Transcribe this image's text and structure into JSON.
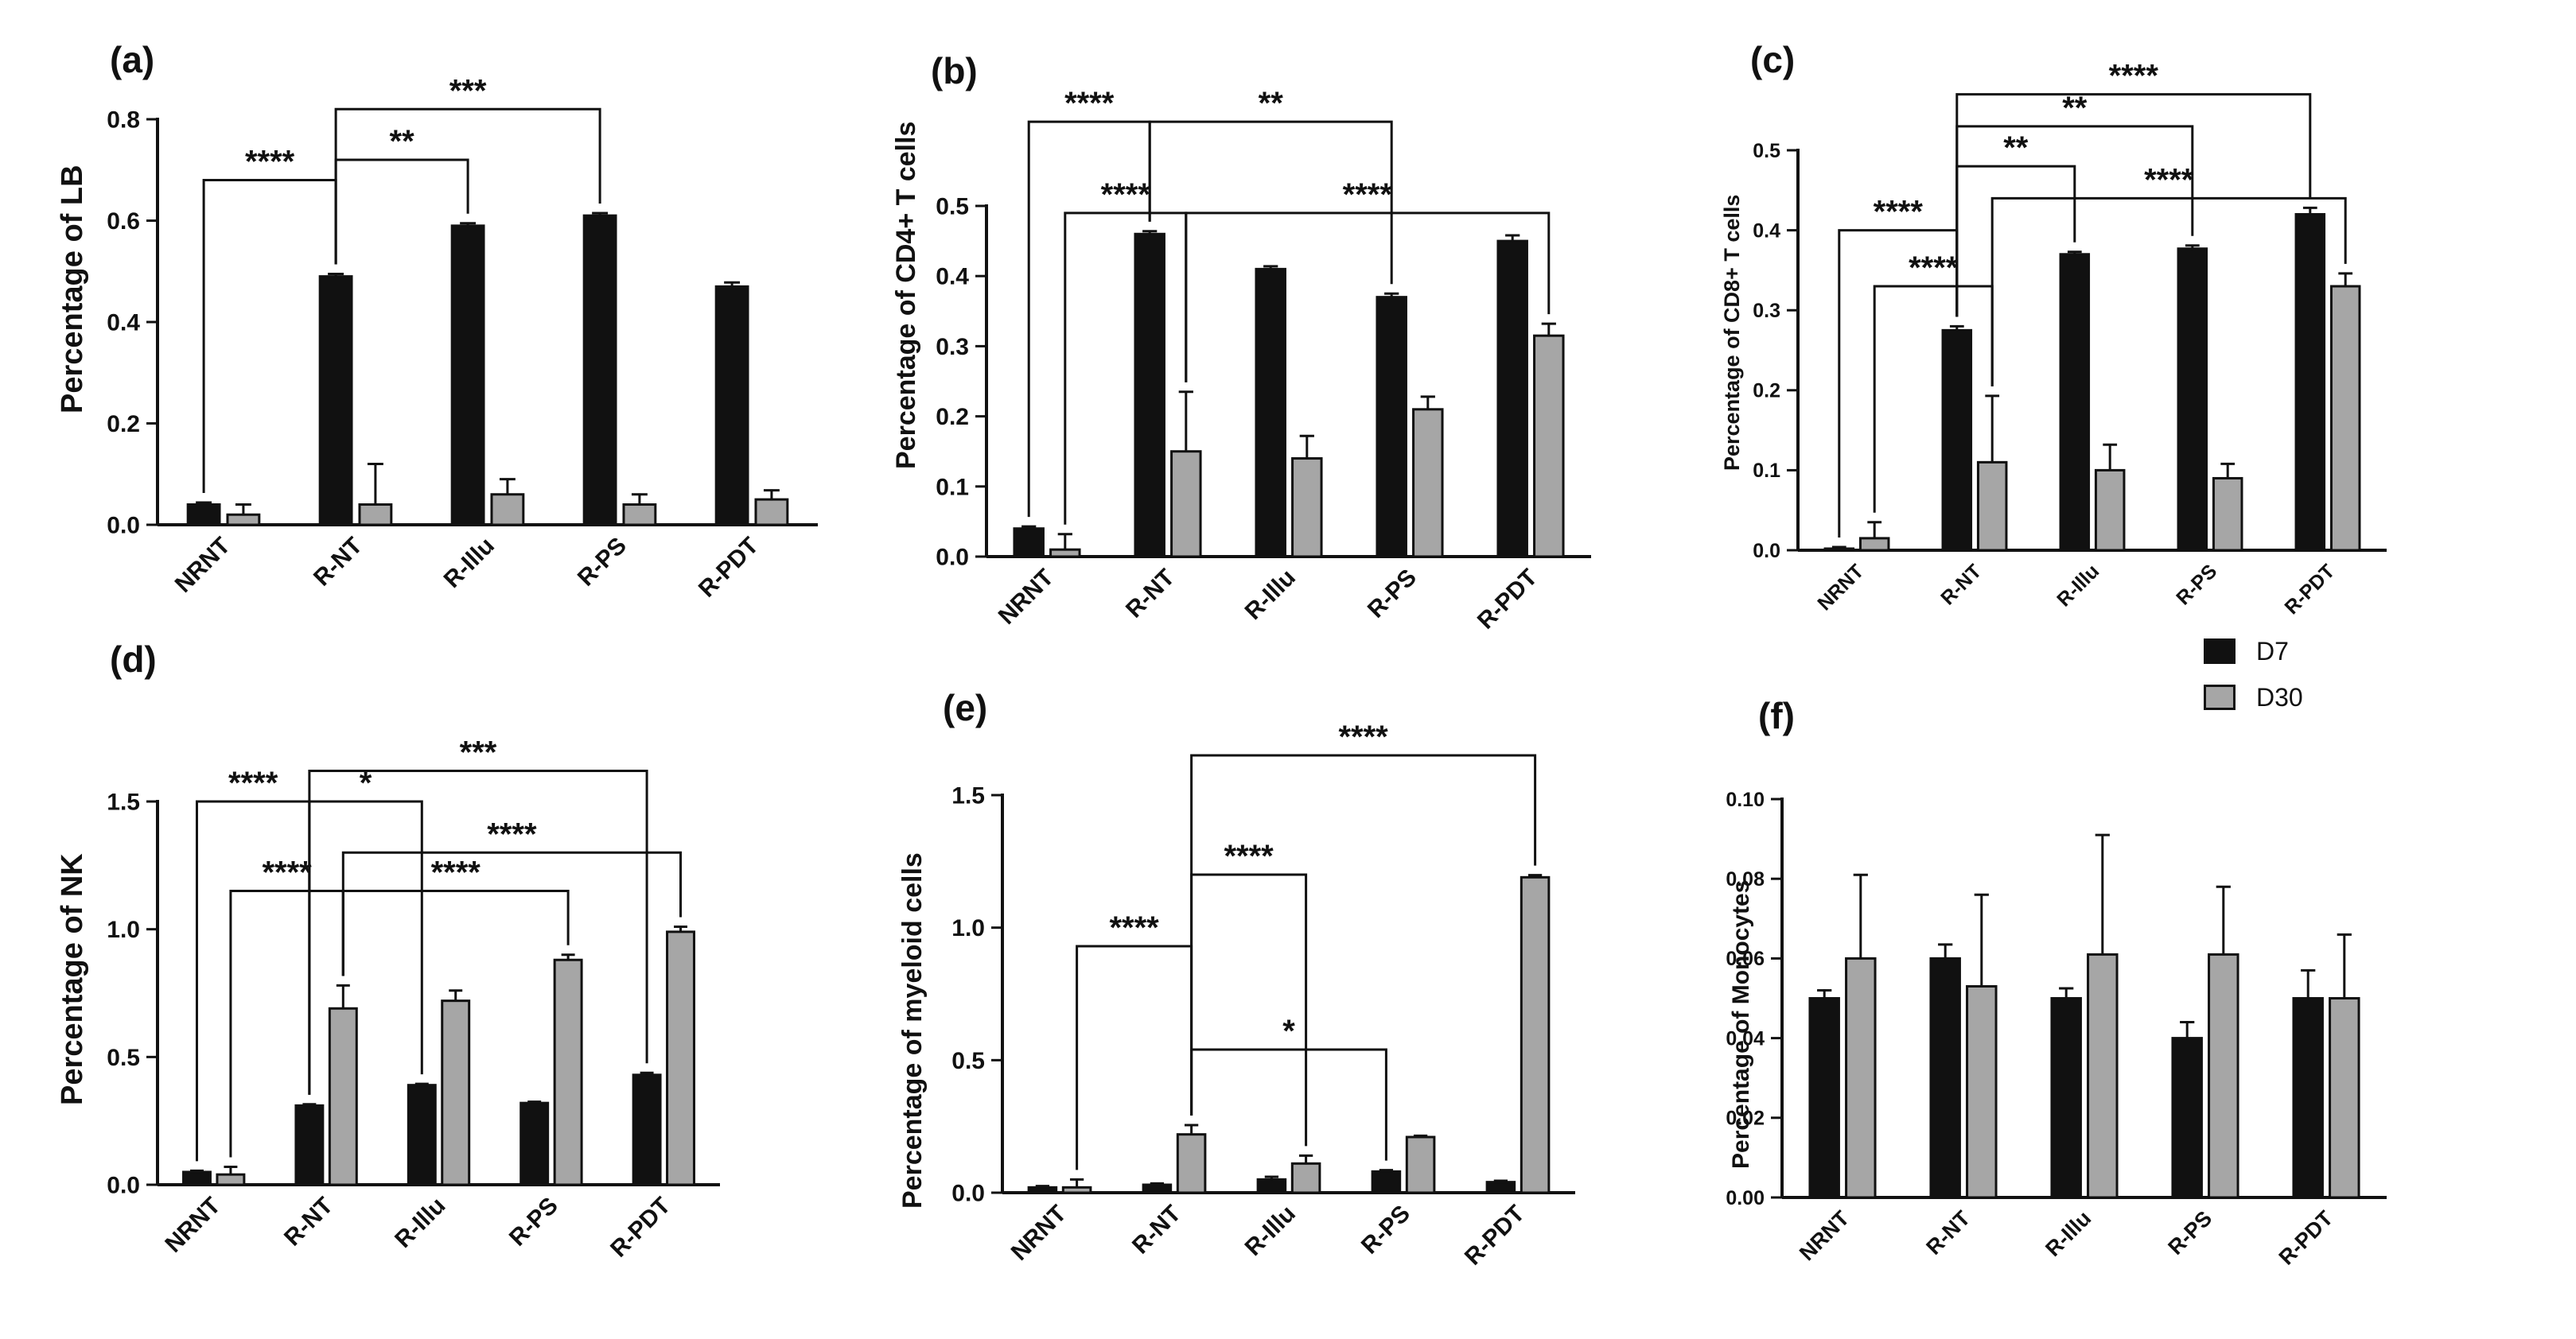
{
  "legend": [
    {
      "name": "D7",
      "color": "#111111"
    },
    {
      "name": "D30",
      "color": "#a6a6a6"
    }
  ],
  "chart_data": [
    {
      "type": "bar",
      "panel": "(a)",
      "ylabel": "Percentage of LB",
      "ylim": [
        0,
        0.8
      ],
      "yticks": [
        0.0,
        0.2,
        0.4,
        0.6,
        0.8
      ],
      "ytick_labels": [
        "0.0",
        "0.2",
        "0.4",
        "0.6",
        "0.8"
      ],
      "categories": [
        "NRNT",
        "R-NT",
        "R-Illu",
        "R-PS",
        "R-PDT"
      ],
      "series": [
        {
          "name": "D7",
          "values": [
            0.04,
            0.49,
            0.59,
            0.61,
            0.47
          ],
          "errors": [
            0.004,
            0.005,
            0.005,
            0.005,
            0.008
          ]
        },
        {
          "name": "D30",
          "values": [
            0.02,
            0.04,
            0.06,
            0.04,
            0.05
          ],
          "errors": [
            0.02,
            0.08,
            0.03,
            0.02,
            0.018
          ]
        }
      ],
      "annotations": [
        {
          "label": "****",
          "from": [
            0,
            "D7"
          ],
          "to": [
            1,
            "D7"
          ],
          "y": 0.68
        },
        {
          "label": "**",
          "from": [
            1,
            "D7"
          ],
          "to": [
            2,
            "D7"
          ],
          "y": 0.72
        },
        {
          "label": "***",
          "from": [
            1,
            "D7"
          ],
          "to": [
            3,
            "D7"
          ],
          "y": 0.82
        }
      ]
    },
    {
      "type": "bar",
      "panel": "(b)",
      "ylabel": "Percentage of CD4+ T cells",
      "ylim": [
        0,
        0.5
      ],
      "yticks": [
        0.0,
        0.1,
        0.2,
        0.3,
        0.4,
        0.5
      ],
      "ytick_labels": [
        "0.0",
        "0.1",
        "0.2",
        "0.3",
        "0.4",
        "0.5"
      ],
      "categories": [
        "NRNT",
        "R-NT",
        "R-Illu",
        "R-PS",
        "R-PDT"
      ],
      "series": [
        {
          "name": "D7",
          "values": [
            0.04,
            0.46,
            0.41,
            0.37,
            0.45
          ],
          "errors": [
            0.003,
            0.004,
            0.004,
            0.005,
            0.008
          ]
        },
        {
          "name": "D30",
          "values": [
            0.01,
            0.15,
            0.14,
            0.21,
            0.315
          ],
          "errors": [
            0.022,
            0.085,
            0.032,
            0.018,
            0.017
          ]
        }
      ],
      "annotations": [
        {
          "label": "****",
          "from": [
            0,
            "D7"
          ],
          "to": [
            1,
            "D7"
          ],
          "y": 0.62
        },
        {
          "label": "**",
          "from": [
            1,
            "D7"
          ],
          "to": [
            3,
            "D7"
          ],
          "y": 0.62
        },
        {
          "label": "****",
          "from": [
            0,
            "D30"
          ],
          "to": [
            1,
            "D30"
          ],
          "y": 0.49
        },
        {
          "label": "****",
          "from": [
            1,
            "D30"
          ],
          "to": [
            4,
            "D30"
          ],
          "y": 0.49
        }
      ]
    },
    {
      "type": "bar",
      "panel": "(c)",
      "ylabel": "Percentage of CD8+ T cells",
      "ylim": [
        0,
        0.5
      ],
      "yticks": [
        0.0,
        0.1,
        0.2,
        0.3,
        0.4,
        0.5
      ],
      "ytick_labels": [
        "0.0",
        "0.1",
        "0.2",
        "0.3",
        "0.4",
        "0.5"
      ],
      "categories": [
        "NRNT",
        "R-NT",
        "R-Illu",
        "R-PS",
        "R-PDT"
      ],
      "series": [
        {
          "name": "D7",
          "values": [
            0.002,
            0.275,
            0.37,
            0.377,
            0.42
          ],
          "errors": [
            0.002,
            0.005,
            0.003,
            0.004,
            0.008
          ]
        },
        {
          "name": "D30",
          "values": [
            0.015,
            0.11,
            0.1,
            0.09,
            0.33
          ],
          "errors": [
            0.02,
            0.083,
            0.032,
            0.018,
            0.016
          ]
        }
      ],
      "annotations": [
        {
          "label": "****",
          "from": [
            0,
            "D7"
          ],
          "to": [
            1,
            "D7"
          ],
          "y": 0.4
        },
        {
          "label": "**",
          "from": [
            1,
            "D7"
          ],
          "to": [
            2,
            "D7"
          ],
          "y": 0.48
        },
        {
          "label": "**",
          "from": [
            1,
            "D7"
          ],
          "to": [
            3,
            "D7"
          ],
          "y": 0.53
        },
        {
          "label": "****",
          "from": [
            1,
            "D7"
          ],
          "to": [
            4,
            "D7"
          ],
          "y": 0.57
        },
        {
          "label": "****",
          "from": [
            0,
            "D30"
          ],
          "to": [
            1,
            "D30"
          ],
          "y": 0.33
        },
        {
          "label": "****",
          "from": [
            1,
            "D30"
          ],
          "to": [
            4,
            "D30"
          ],
          "y": 0.44
        }
      ]
    },
    {
      "type": "bar",
      "panel": "(d)",
      "ylabel": "Percentage of NK",
      "ylim": [
        0,
        1.5
      ],
      "yticks": [
        0.0,
        0.5,
        1.0,
        1.5
      ],
      "ytick_labels": [
        "0.0",
        "0.5",
        "1.0",
        "1.5"
      ],
      "categories": [
        "NRNT",
        "R-NT",
        "R-Illu",
        "R-PS",
        "R-PDT"
      ],
      "series": [
        {
          "name": "D7",
          "values": [
            0.05,
            0.31,
            0.39,
            0.32,
            0.43
          ],
          "errors": [
            0.005,
            0.005,
            0.005,
            0.005,
            0.008
          ]
        },
        {
          "name": "D30",
          "values": [
            0.04,
            0.69,
            0.72,
            0.88,
            0.99
          ],
          "errors": [
            0.03,
            0.09,
            0.04,
            0.02,
            0.02
          ]
        }
      ],
      "annotations": [
        {
          "label": "****",
          "from": [
            0,
            "D7"
          ],
          "to": [
            1,
            "D7"
          ],
          "y": 1.5
        },
        {
          "label": "*",
          "from": [
            1,
            "D7"
          ],
          "to": [
            2,
            "D7"
          ],
          "y": 1.5
        },
        {
          "label": "***",
          "from": [
            1,
            "D7"
          ],
          "to": [
            4,
            "D7"
          ],
          "y": 1.62
        },
        {
          "label": "****",
          "from": [
            0,
            "D30"
          ],
          "to": [
            1,
            "D30"
          ],
          "y": 1.15
        },
        {
          "label": "****",
          "from": [
            1,
            "D30"
          ],
          "to": [
            3,
            "D30"
          ],
          "y": 1.15
        },
        {
          "label": "****",
          "from": [
            1,
            "D30"
          ],
          "to": [
            4,
            "D30"
          ],
          "y": 1.3
        }
      ]
    },
    {
      "type": "bar",
      "panel": "(e)",
      "ylabel": "Percentage of myeloid cells",
      "ylim": [
        0,
        1.5
      ],
      "yticks": [
        0.0,
        0.5,
        1.0,
        1.5
      ],
      "ytick_labels": [
        "0.0",
        "0.5",
        "1.0",
        "1.5"
      ],
      "categories": [
        "NRNT",
        "R-NT",
        "R-Illu",
        "R-PS",
        "R-PDT"
      ],
      "series": [
        {
          "name": "D7",
          "values": [
            0.02,
            0.03,
            0.05,
            0.08,
            0.04
          ],
          "errors": [
            0.005,
            0.005,
            0.01,
            0.005,
            0.005
          ]
        },
        {
          "name": "D30",
          "values": [
            0.02,
            0.22,
            0.11,
            0.21,
            1.19
          ],
          "errors": [
            0.03,
            0.035,
            0.03,
            0.005,
            0.008
          ]
        }
      ],
      "annotations": [
        {
          "label": "****",
          "from": [
            0,
            "D30"
          ],
          "to": [
            1,
            "D30"
          ],
          "y": 0.93
        },
        {
          "label": "****",
          "from": [
            1,
            "D30"
          ],
          "to": [
            2,
            "D30"
          ],
          "y": 1.2
        },
        {
          "label": "*",
          "from": [
            1,
            "D30"
          ],
          "to": [
            3,
            "D7"
          ],
          "y": 0.54
        },
        {
          "label": "****",
          "from": [
            1,
            "D30"
          ],
          "to": [
            4,
            "D30"
          ],
          "y": 1.65
        }
      ]
    },
    {
      "type": "bar",
      "panel": "(f)",
      "ylabel": "Percentage of Monocytes",
      "ylim": [
        0,
        0.1
      ],
      "yticks": [
        0.0,
        0.02,
        0.04,
        0.06,
        0.08,
        0.1
      ],
      "ytick_labels": [
        "0.00",
        "0.02",
        "0.04",
        "0.06",
        "0.08",
        "0.10"
      ],
      "categories": [
        "NRNT",
        "R-NT",
        "R-Illu",
        "R-PS",
        "R-PDT"
      ],
      "series": [
        {
          "name": "D7",
          "values": [
            0.05,
            0.06,
            0.05,
            0.04,
            0.05
          ],
          "errors": [
            0.002,
            0.0035,
            0.0025,
            0.004,
            0.007
          ]
        },
        {
          "name": "D30",
          "values": [
            0.06,
            0.053,
            0.061,
            0.061,
            0.05
          ],
          "errors": [
            0.021,
            0.023,
            0.03,
            0.017,
            0.016
          ]
        }
      ],
      "annotations": []
    }
  ]
}
